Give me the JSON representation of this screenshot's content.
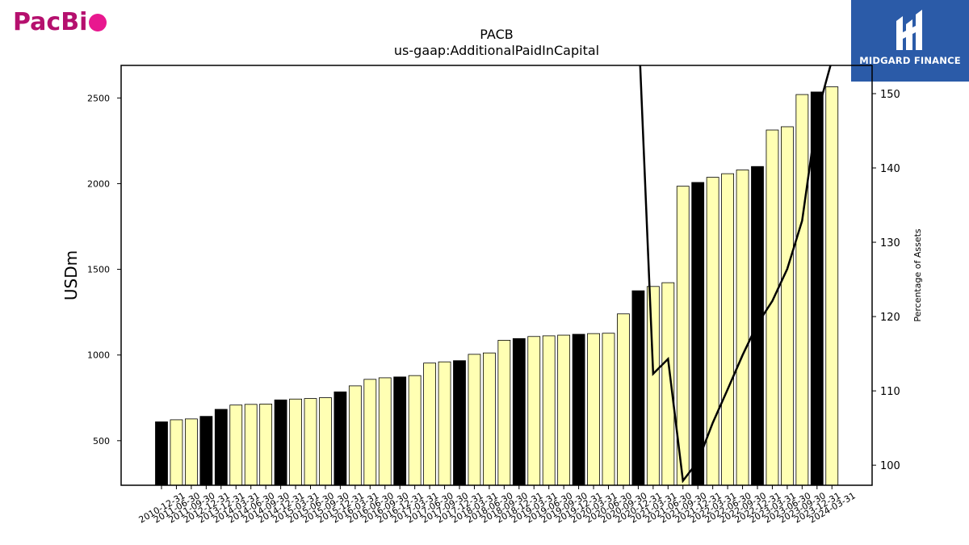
{
  "logos": {
    "left_text": "PacBi",
    "right_text": "MIDGARD FINANCE",
    "right_bg": "#2b5ba8",
    "left_color": "#b5106e"
  },
  "chart_data": {
    "type": "bar",
    "title": "PACB",
    "subtitle": "us-gaap:AdditionalPaidInCapital",
    "ylabel": "USDm",
    "y2label": "Percentage of Assets",
    "ylim": [
      240,
      2690
    ],
    "y2lim": [
      97.3,
      153.8
    ],
    "yticks": [
      500,
      1000,
      1500,
      2000,
      2500
    ],
    "y2ticks": [
      100,
      110,
      120,
      130,
      140,
      150
    ],
    "bar_color_default": "#ffffb3",
    "bar_color_highlight": "#000000",
    "categories": [
      "2010-12-31",
      "2011-06-30",
      "2011-09-30",
      "2012-12-31",
      "2013-12-31",
      "2014-03-31",
      "2014-06-30",
      "2014-09-30",
      "2014-12-31",
      "2015-03-31",
      "2015-06-30",
      "2015-09-30",
      "2015-12-31",
      "2016-03-31",
      "2016-06-30",
      "2016-09-30",
      "2016-12-31",
      "2017-03-31",
      "2017-06-30",
      "2017-09-30",
      "2017-12-31",
      "2018-03-31",
      "2018-06-30",
      "2018-09-30",
      "2018-12-31",
      "2019-03-31",
      "2019-06-30",
      "2019-09-30",
      "2019-12-31",
      "2020-03-31",
      "2020-06-30",
      "2020-09-30",
      "2020-12-31",
      "2021-03-31",
      "2021-06-30",
      "2021-09-30",
      "2021-12-31",
      "2022-03-31",
      "2022-06-30",
      "2022-09-30",
      "2022-12-31",
      "2023-03-31",
      "2023-06-30",
      "2023-09-30",
      "2023-12-31",
      "2024-03-31"
    ],
    "x_tick_labels": [
      "2010-12-31",
      "2011-06-30",
      "2011-09-30",
      "2012-12-31",
      "2013-12-31",
      "2014-03-31",
      "2014-06-30",
      "2014-09-30",
      "2014-12-31",
      "2015-03-31",
      "2015-06-30",
      "2015-09-30",
      "2015-12-31",
      "2016-03-31",
      "2016-06-30",
      "2016-09-30",
      "2016-12-31",
      "2017-03-31",
      "2017-06-30",
      "2017-09-30",
      "2017-12-31",
      "2018-03-31",
      "2018-06-30",
      "2018-09-30",
      "2018-12-31",
      "2019-03-31",
      "2019-06-30",
      "2019-09-30",
      "2019-12-31",
      "2020-03-31",
      "2020-06-30",
      "2020-09-30",
      "2020-12-31",
      "2021-03-31",
      "2021-06-30",
      "2021-09-30",
      "2021-12-31",
      "2022-03-31",
      "2022-06-30",
      "2022-09-30",
      "2022-12-31",
      "2023-03-31",
      "2023-06-30",
      "2023-09-30",
      "2023-12-31",
      "2024-03-31"
    ],
    "values": [
      610,
      622,
      627,
      642,
      683,
      708,
      712,
      714,
      738,
      743,
      746,
      751,
      785,
      820,
      858,
      867,
      872,
      880,
      953,
      960,
      967,
      1004,
      1012,
      1086,
      1096,
      1108,
      1112,
      1116,
      1121,
      1125,
      1127,
      1240,
      1375,
      1400,
      1422,
      1985,
      2007,
      2037,
      2058,
      2080,
      2100,
      2313,
      2332,
      2520,
      2535,
      2565
    ],
    "highlight": [
      true,
      false,
      false,
      true,
      true,
      false,
      false,
      false,
      true,
      false,
      false,
      false,
      true,
      false,
      false,
      false,
      true,
      false,
      false,
      false,
      true,
      false,
      false,
      false,
      true,
      false,
      false,
      false,
      true,
      false,
      false,
      false,
      true,
      false,
      false,
      false,
      true,
      false,
      false,
      false,
      true,
      false,
      false,
      false,
      true,
      false
    ],
    "pct_of_assets": [
      null,
      null,
      null,
      null,
      null,
      null,
      null,
      null,
      null,
      null,
      null,
      null,
      null,
      null,
      null,
      null,
      null,
      null,
      null,
      null,
      null,
      null,
      null,
      null,
      null,
      null,
      null,
      null,
      null,
      null,
      null,
      null,
      160,
      112.3,
      114.3,
      97.9,
      100.5,
      105.7,
      110.2,
      114.8,
      119.0,
      122.1,
      126.4,
      132.9,
      147.2,
      154.5
    ],
    "line_color": "#000000"
  }
}
